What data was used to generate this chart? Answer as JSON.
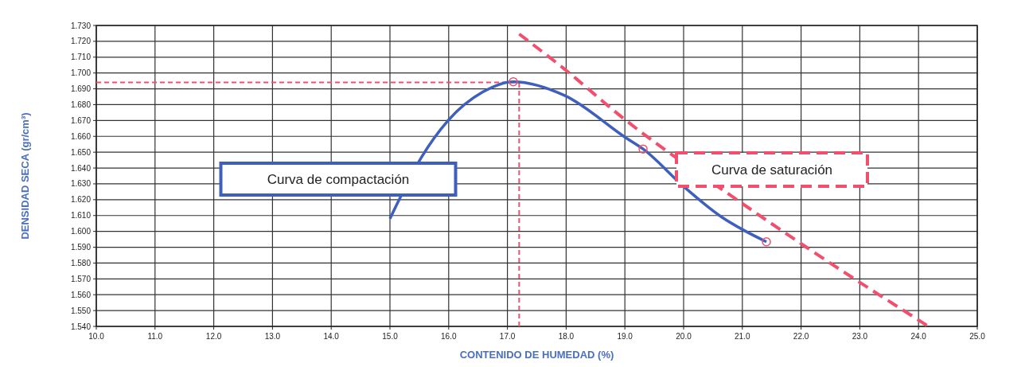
{
  "chart_data": {
    "type": "line",
    "xlabel": "CONTENIDO DE HUMEDAD (%)",
    "ylabel": "DENSIDAD SECA (gr/cm³)",
    "xlim": [
      10,
      25
    ],
    "xticks": [
      {
        "value": 10,
        "label": "10.0"
      },
      {
        "value": 11,
        "label": "11.0"
      },
      {
        "value": 12,
        "label": "12.0"
      },
      {
        "value": 13,
        "label": "13.0"
      },
      {
        "value": 14,
        "label": "14.0"
      },
      {
        "value": 15,
        "label": "15.0"
      },
      {
        "value": 16,
        "label": "16.0"
      },
      {
        "value": 17,
        "label": "17.0"
      },
      {
        "value": 18,
        "label": "18.0"
      },
      {
        "value": 19,
        "label": "19.0"
      },
      {
        "value": 20,
        "label": "20.0"
      },
      {
        "value": 21,
        "label": "21.0"
      },
      {
        "value": 22,
        "label": "22.0"
      },
      {
        "value": 23,
        "label": "23.0"
      },
      {
        "value": 24,
        "label": "24.0"
      },
      {
        "value": 25,
        "label": "25.0"
      }
    ],
    "ylim": [
      1.54,
      1.73
    ],
    "yticks": [
      {
        "value": 1.54,
        "label": "1.540"
      },
      {
        "value": 1.55,
        "label": "1.550"
      },
      {
        "value": 1.56,
        "label": "1.560"
      },
      {
        "value": 1.57,
        "label": "1.570"
      },
      {
        "value": 1.58,
        "label": "1.580"
      },
      {
        "value": 1.59,
        "label": "1.590"
      },
      {
        "value": 1.6,
        "label": "1.600"
      },
      {
        "value": 1.61,
        "label": "1.610"
      },
      {
        "value": 1.62,
        "label": "1.620"
      },
      {
        "value": 1.63,
        "label": "1.630"
      },
      {
        "value": 1.64,
        "label": "1.640"
      },
      {
        "value": 1.65,
        "label": "1.650"
      },
      {
        "value": 1.66,
        "label": "1.660"
      },
      {
        "value": 1.67,
        "label": "1.670"
      },
      {
        "value": 1.68,
        "label": "1.680"
      },
      {
        "value": 1.69,
        "label": "1.690"
      },
      {
        "value": 1.7,
        "label": "1.700"
      },
      {
        "value": 1.71,
        "label": "1.710"
      },
      {
        "value": 1.72,
        "label": "1.720"
      },
      {
        "value": 1.73,
        "label": "1.730"
      }
    ],
    "grid": true,
    "series": [
      {
        "name": "Curva de compactación",
        "type": "line",
        "color": "#3f5fbf",
        "line_style": "solid",
        "marker": "none",
        "x": [
          15.0,
          15.54,
          15.99,
          16.58,
          17.1,
          17.98,
          19.02,
          19.31,
          20.01,
          20.65,
          21.01,
          21.41
        ],
        "values": [
          1.608,
          1.647,
          1.67,
          1.688,
          1.6945,
          1.6857,
          1.659,
          1.652,
          1.628,
          1.609,
          1.601,
          1.5934
        ]
      },
      {
        "name": "Curva de saturación",
        "type": "line",
        "color": "#f0506e",
        "line_style": "dashed",
        "marker": "none",
        "x": [
          17.2,
          17.94,
          18.97,
          20.96,
          22.09,
          24.17
        ],
        "values": [
          1.7246,
          1.7034,
          1.6715,
          1.6186,
          1.59,
          1.54
        ]
      },
      {
        "type": "scatter",
        "color": "#f0506e",
        "marker": "circle",
        "x": [
          17.1,
          19.31,
          21.41
        ],
        "values": [
          1.6945,
          1.652,
          1.5934
        ]
      }
    ],
    "ref_lines": [
      {
        "axis": "y",
        "value": 1.694,
        "color": "#f0506e",
        "line_style": "dashed"
      },
      {
        "axis": "x",
        "value": 17.2,
        "color": "#f0506e",
        "line_style": "dashed"
      }
    ]
  }
}
